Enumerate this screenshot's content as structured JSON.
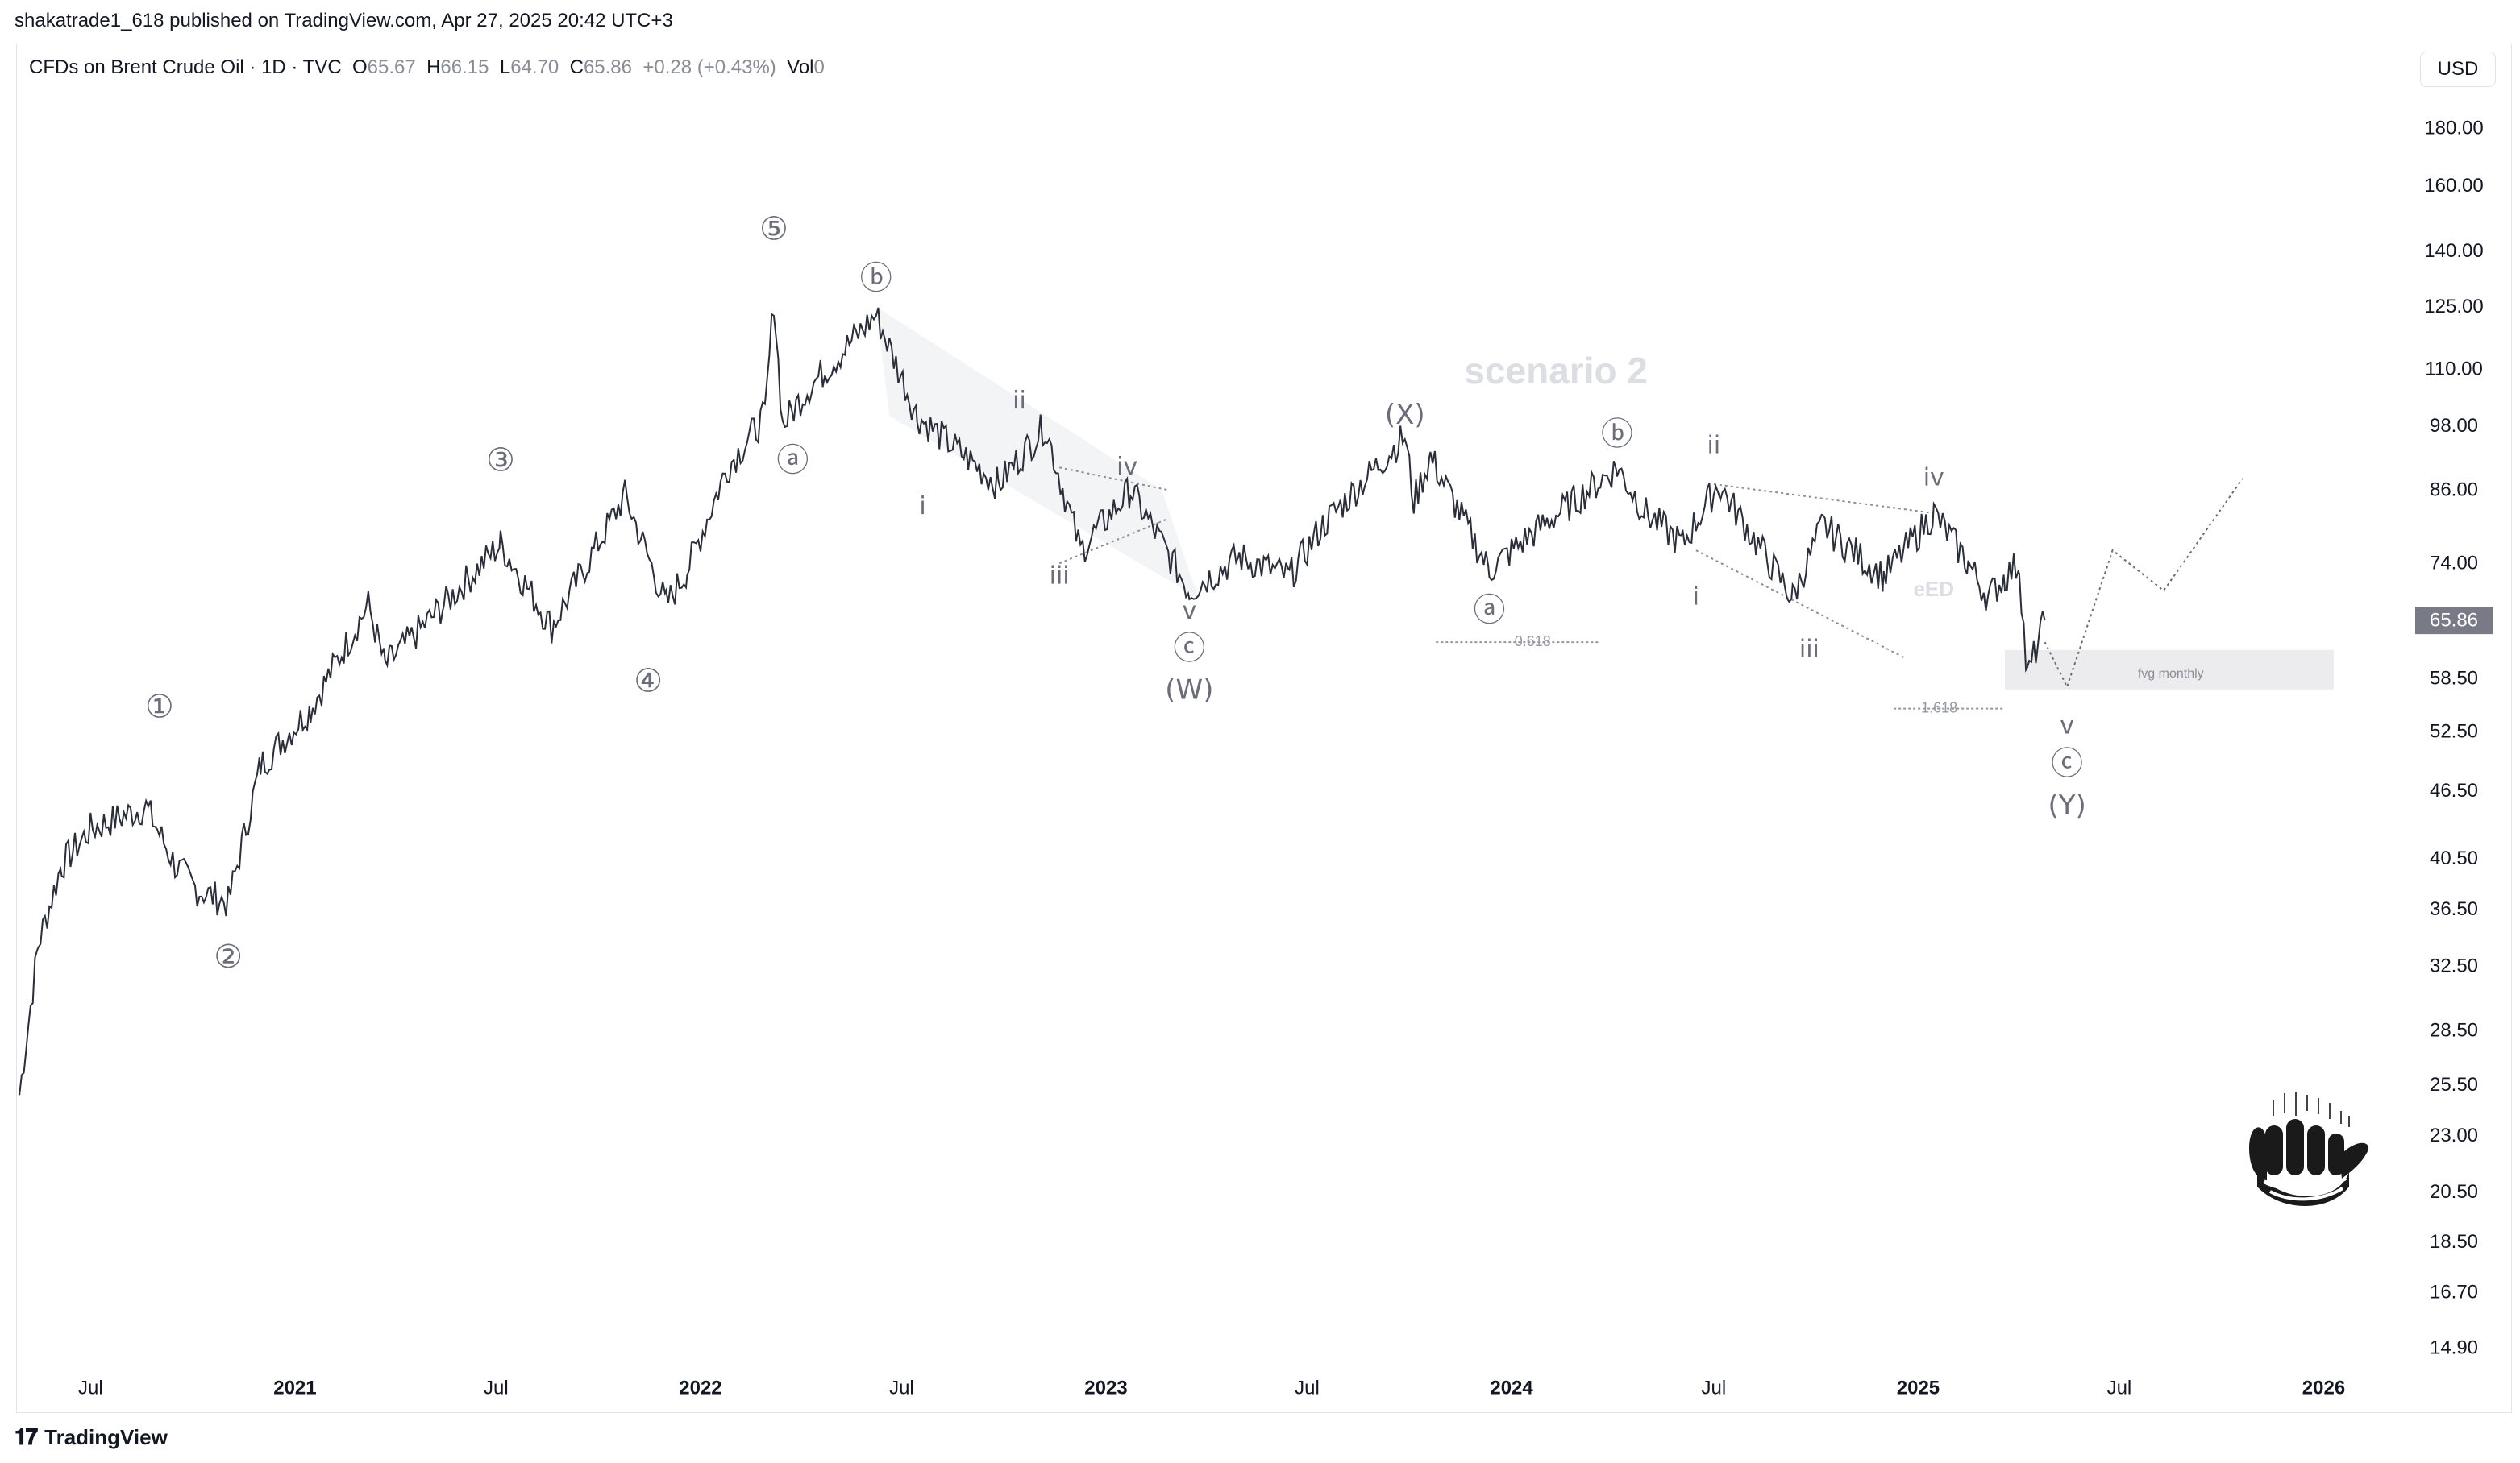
{
  "header": {
    "publisher_line": "shakatrade1_618 published on TradingView.com, Apr 27, 2025 20:42 UTC+3"
  },
  "symbol_bar": {
    "name": "CFDs on Brent Crude Oil · 1D · TVC",
    "o_label": "O",
    "o_value": "65.67",
    "h_label": "H",
    "h_value": "66.15",
    "l_label": "L",
    "l_value": "64.70",
    "c_label": "C",
    "c_value": "65.86",
    "change": "+0.28 (+0.43%)",
    "vol_label": "Vol",
    "vol_value": "0"
  },
  "currency_button": "USD",
  "footer": {
    "brand": "TradingView"
  },
  "colors": {
    "price_line": "#2a2e39",
    "wave_label": "#6b6e78",
    "annotation": "#d9dbe0",
    "price_tag_bg": "#787b86"
  },
  "chart_data": {
    "type": "line",
    "scale": "log",
    "ylim": [
      13.8,
      205
    ],
    "y_ticks": [
      "180.00",
      "160.00",
      "140.00",
      "125.00",
      "110.00",
      "98.00",
      "86.00",
      "74.00",
      "65.86",
      "58.50",
      "52.50",
      "46.50",
      "40.50",
      "36.50",
      "32.50",
      "28.50",
      "25.50",
      "23.00",
      "20.50",
      "18.50",
      "16.70",
      "14.90"
    ],
    "x_ticks": [
      "Jul",
      "2021",
      "Jul",
      "2022",
      "Jul",
      "2023",
      "Jul",
      "2024",
      "Jul",
      "2025",
      "Jul",
      "2026"
    ],
    "last_price": "65.86",
    "series": [
      {
        "x": [
          "2020-04-28",
          "2020-05-15",
          "2020-06-05",
          "2020-07-01",
          "2020-08-20",
          "2020-09-15",
          "2020-10-05",
          "2020-11-02",
          "2020-12-01",
          "2021-01-15",
          "2021-03-08",
          "2021-03-23",
          "2021-05-15",
          "2021-07-05",
          "2021-08-20",
          "2021-10-25",
          "2021-12-01",
          "2021-12-20",
          "2022-01-25",
          "2022-02-28",
          "2022-03-08",
          "2022-03-16",
          "2022-04-05",
          "2022-06-08",
          "2022-07-15",
          "2022-09-26",
          "2022-11-07",
          "2022-12-09",
          "2023-01-23",
          "2023-03-17",
          "2023-05-01",
          "2023-06-15",
          "2023-07-15",
          "2023-09-27",
          "2023-10-05",
          "2023-10-20",
          "2023-12-12",
          "2024-01-15",
          "2024-04-05",
          "2024-05-01",
          "2024-06-03",
          "2024-07-05",
          "2024-09-10",
          "2024-10-07",
          "2024-12-01",
          "2025-01-15",
          "2025-02-15",
          "2025-03-05",
          "2025-03-20",
          "2025-04-02",
          "2025-04-09",
          "2025-04-25"
        ],
        "y": [
          25,
          34,
          40,
          43,
          45,
          40,
          38,
          37,
          49,
          55,
          68,
          60,
          68,
          77,
          65,
          85,
          68,
          73,
          90,
          100,
          127,
          98,
          105,
          123,
          100,
          87,
          98,
          76,
          86,
          70,
          75,
          72,
          80,
          96,
          84,
          92,
          73,
          78,
          90,
          82,
          77,
          87,
          69,
          80,
          72,
          82,
          74,
          69,
          72,
          74,
          58.5,
          65.86
        ]
      }
    ],
    "wave_labels": [
      {
        "text": "①",
        "x": "2020-09-01",
        "y": 55
      },
      {
        "text": "②",
        "x": "2020-11-02",
        "y": 33
      },
      {
        "text": "③",
        "x": "2021-07-05",
        "y": 91
      },
      {
        "text": "④",
        "x": "2021-11-15",
        "y": 58
      },
      {
        "text": "⑤",
        "x": "2022-03-08",
        "y": 146
      },
      {
        "text": "ⓐ",
        "x": "2022-03-25",
        "y": 91
      },
      {
        "text": "ⓑ",
        "x": "2022-06-08",
        "y": 132
      },
      {
        "text": "i",
        "x": "2022-07-20",
        "y": 83
      },
      {
        "text": "ii",
        "x": "2022-10-15",
        "y": 103
      },
      {
        "text": "iii",
        "x": "2022-11-20",
        "y": 72
      },
      {
        "text": "iv",
        "x": "2023-01-20",
        "y": 90
      },
      {
        "text": "v",
        "x": "2023-03-17",
        "y": 67
      },
      {
        "text": "ⓒ",
        "x": "2023-03-17",
        "y": 62
      },
      {
        "text": "(W)",
        "x": "2023-03-17",
        "y": 57
      },
      {
        "text": "(X)",
        "x": "2023-09-27",
        "y": 100
      },
      {
        "text": "ⓐ",
        "x": "2023-12-12",
        "y": 67
      },
      {
        "text": "ⓑ",
        "x": "2024-04-05",
        "y": 96
      },
      {
        "text": "ii",
        "x": "2024-07-01",
        "y": 94
      },
      {
        "text": "i",
        "x": "2024-06-15",
        "y": 69
      },
      {
        "text": "iii",
        "x": "2024-09-25",
        "y": 62
      },
      {
        "text": "iv",
        "x": "2025-01-15",
        "y": 88
      },
      {
        "text": "v",
        "x": "2025-05-15",
        "y": 53
      },
      {
        "text": "ⓒ",
        "x": "2025-05-15",
        "y": 49
      },
      {
        "text": "(Y)",
        "x": "2025-05-15",
        "y": 45
      }
    ],
    "annotations": [
      {
        "text": "scenario 2",
        "x": "2024-02-10",
        "y": 109
      },
      {
        "text": "eED",
        "x": "2025-01-15",
        "y": 70
      },
      {
        "text": "0.618",
        "x": "2024-01-20",
        "y": 63
      },
      {
        "text": "1.618",
        "x": "2025-01-20",
        "y": 55
      },
      {
        "text": "fvg monthly",
        "x": "2025-09-15",
        "y": 59
      }
    ],
    "projection": {
      "x": [
        "2025-04-25",
        "2025-05-15",
        "2025-06-25",
        "2025-08-10",
        "2025-10-20"
      ],
      "y": [
        63,
        57.5,
        76,
        70,
        88
      ]
    }
  }
}
